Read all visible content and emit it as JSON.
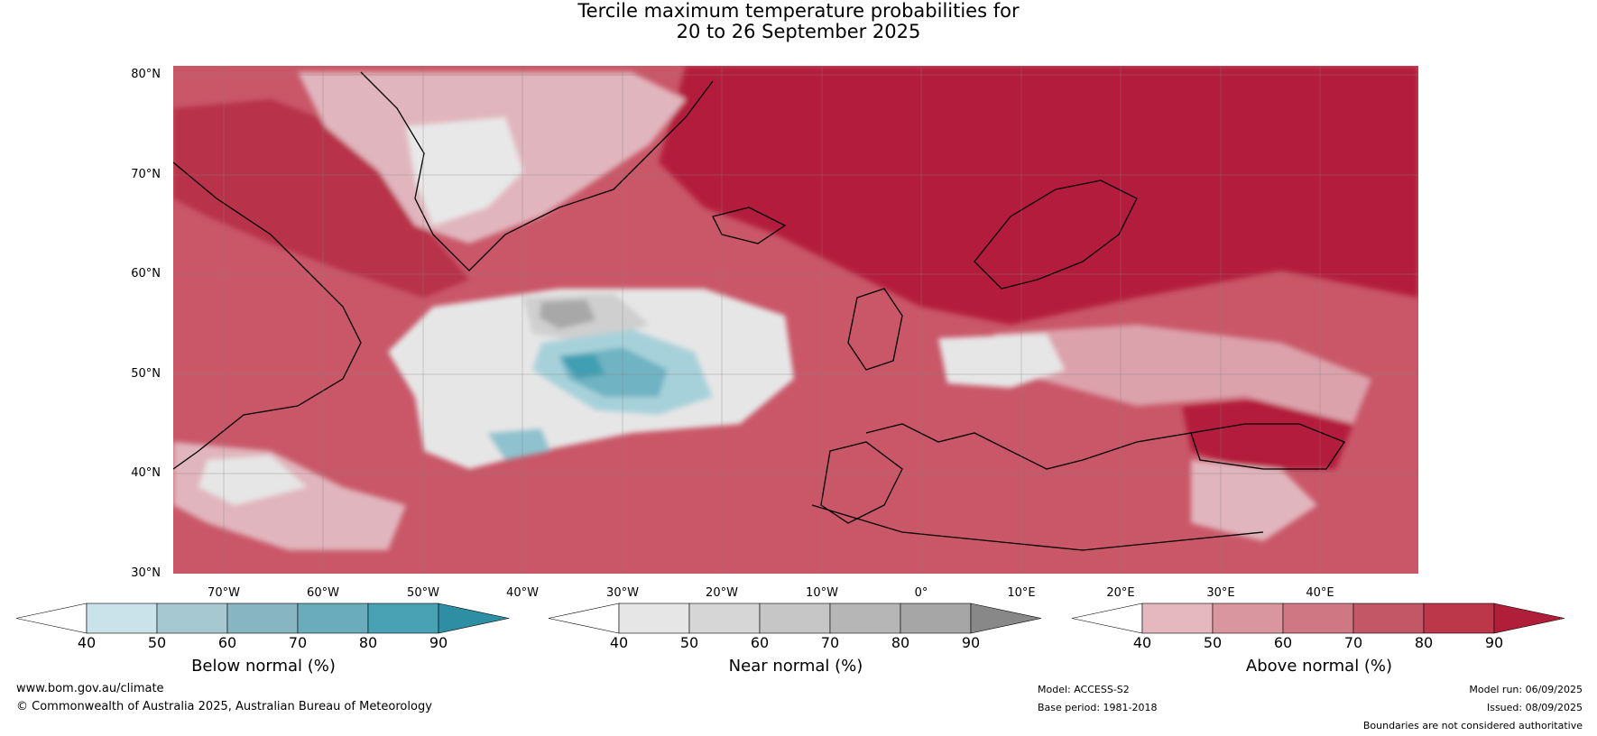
{
  "title": {
    "line1": "Tercile maximum temperature probabilities for",
    "line2": "20 to 26 September 2025"
  },
  "lat_ticks": [
    "80°N",
    "70°N",
    "60°N",
    "50°N",
    "40°N",
    "30°N"
  ],
  "lon_ticks": [
    "70°W",
    "60°W",
    "50°W",
    "40°W",
    "30°W",
    "20°W",
    "10°W",
    "0°",
    "10°E",
    "20°E",
    "30°E",
    "40°E"
  ],
  "colorbars": [
    {
      "label": "Below normal (%)",
      "ticks": [
        "40",
        "50",
        "60",
        "70",
        "80",
        "90"
      ],
      "colors": [
        "#ffffff",
        "#cae3ea",
        "#a6c9d1",
        "#87b5c2",
        "#6aacbc",
        "#48a2b3",
        "#2e8ea3"
      ]
    },
    {
      "label": "Near normal (%)",
      "ticks": [
        "40",
        "50",
        "60",
        "70",
        "80",
        "90"
      ],
      "colors": [
        "#ffffff",
        "#e6e6e6",
        "#d6d6d6",
        "#c6c6c6",
        "#b6b6b6",
        "#a6a6a6",
        "#888888"
      ]
    },
    {
      "label": "Above normal (%)",
      "ticks": [
        "40",
        "50",
        "60",
        "70",
        "80",
        "90"
      ],
      "colors": [
        "#ffffff",
        "#e5b8c0",
        "#d9969f",
        "#cf7883",
        "#c45766",
        "#bb3749",
        "#b01e3a"
      ]
    }
  ],
  "footer": {
    "website": "www.bom.gov.au/climate",
    "copyright": "© Commonwealth of Australia 2025, Australian Bureau of Meteorology",
    "model": "Model: ACCESS-S2",
    "base_period": "Base period: 1981-2018",
    "model_run": "Model run: 06/09/2025",
    "issued": "Issued: 08/09/2025",
    "disclaimer": "Boundaries are not considered authoritative"
  },
  "colors": {
    "ocean_above": "#c95768",
    "above_strong": "#b41e3c",
    "above_mid": "#c84a5d",
    "above_light": "#dca2ac",
    "near_light": "#e6e6e6",
    "near_mid": "#cdcdcd",
    "near_dark": "#a8a8a8",
    "below_light": "#a7d1da",
    "below_mid": "#6fb3c2",
    "below_dark": "#3f9fb2"
  }
}
